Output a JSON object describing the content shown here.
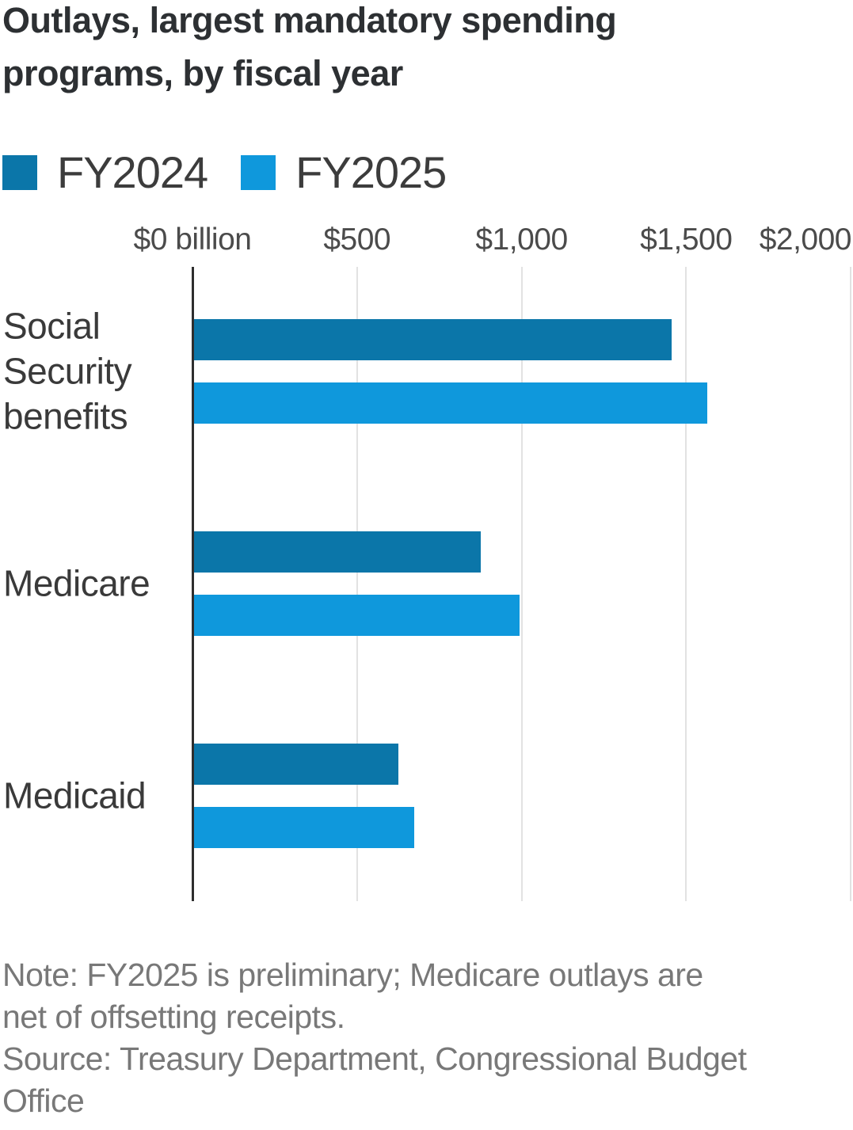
{
  "header": {
    "title": "Outlays, largest mandatory spending programs, by fiscal year",
    "title_lines": [
      "Outlays, largest mandatory spending",
      "programs, by fiscal year"
    ]
  },
  "chart_data": {
    "type": "bar",
    "orientation": "horizontal",
    "title": "Outlays, largest mandatory spending programs, by fiscal year",
    "categories": [
      "Social Security benefits",
      "Medicare",
      "Medicaid"
    ],
    "series": [
      {
        "name": "FY2024",
        "color": "#0b76a9",
        "values": [
          1450,
          870,
          620
        ]
      },
      {
        "name": "FY2025",
        "color": "#0f98dc",
        "values": [
          1560,
          990,
          670
        ]
      }
    ],
    "x_ticks": [
      {
        "value": 0,
        "label": "$0 billion"
      },
      {
        "value": 500,
        "label": "$500"
      },
      {
        "value": 1000,
        "label": "$1,000"
      },
      {
        "value": 1500,
        "label": "$1,500"
      },
      {
        "value": 2000,
        "label": "$2,000"
      }
    ],
    "xlim": [
      0,
      2000
    ],
    "grid": true,
    "legend_position": "top"
  },
  "footer": {
    "note": "Note: FY2025 is preliminary; Medicare outlays are net of offsetting receipts.",
    "note_lines": [
      "Note: FY2025 is preliminary; Medicare outlays are",
      "net of offsetting receipts."
    ],
    "source": "Source: Treasury Department, Congressional Budget Office",
    "source_lines": [
      "Source: Treasury Department, Congressional Budget",
      "Office"
    ]
  },
  "colors": {
    "fy2024_bar": "#0b76a9",
    "fy2025_bar": "#0f98dc",
    "axis": "#2e2e2e",
    "gridline": "#e2e2e2",
    "title_text": "#2d3033",
    "category_text": "#3a3a3a",
    "tick_text": "#4b4b4b",
    "note_text": "#787878",
    "background": "#ffffff"
  }
}
